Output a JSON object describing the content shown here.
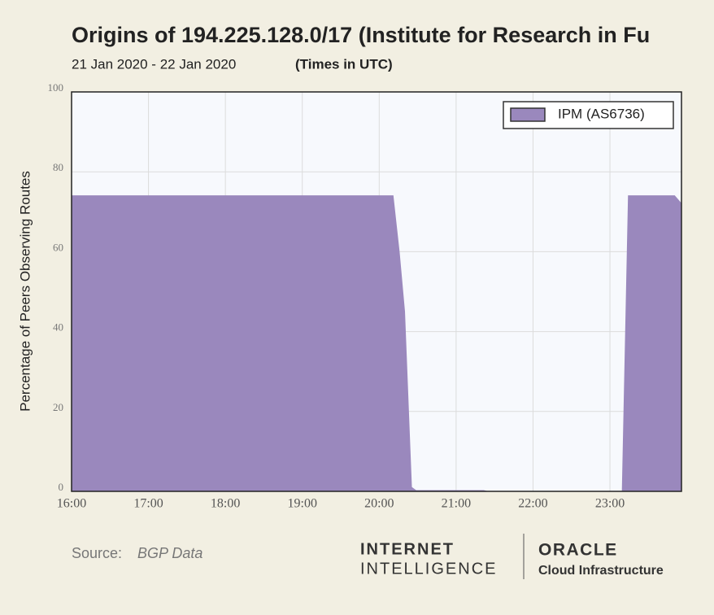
{
  "chart_data": {
    "type": "area",
    "title": "Origins of 194.225.128.0/17 (Institute for Research in Fu",
    "subtitle": "21 Jan 2020 - 22 Jan 2020",
    "subtitle_note": "(Times in UTC)",
    "y_label": "Percentage of Peers Observing Routes",
    "x": [
      16.0,
      20.18,
      20.26,
      20.33,
      20.42,
      20.48,
      21.36,
      21.4,
      23.16,
      23.24,
      23.84,
      23.93
    ],
    "series": [
      {
        "name": "IPM (AS6736)",
        "color": "#9a88bd",
        "values": [
          74,
          74,
          60,
          45,
          1,
          0.2,
          0.2,
          0,
          0,
          74,
          74,
          72
        ]
      }
    ],
    "xlim": [
      16,
      23.93
    ],
    "xticks": [
      {
        "value": 16,
        "label": "16:00"
      },
      {
        "value": 17,
        "label": "17:00"
      },
      {
        "value": 18,
        "label": "18:00"
      },
      {
        "value": 19,
        "label": "19:00"
      },
      {
        "value": 20,
        "label": "20:00"
      },
      {
        "value": 21,
        "label": "21:00"
      },
      {
        "value": 22,
        "label": "22:00"
      },
      {
        "value": 23,
        "label": "23:00"
      }
    ],
    "ylim": [
      0,
      100
    ],
    "yticks": [
      0,
      20,
      40,
      60,
      80,
      100
    ],
    "grid": true,
    "legend": "upper right",
    "source_label": "Source:",
    "source": "BGP Data",
    "logo_left": [
      "INTERNET",
      "INTELLIGENCE"
    ],
    "logo_right": [
      "ORACLE",
      "Cloud Infrastructure"
    ]
  }
}
